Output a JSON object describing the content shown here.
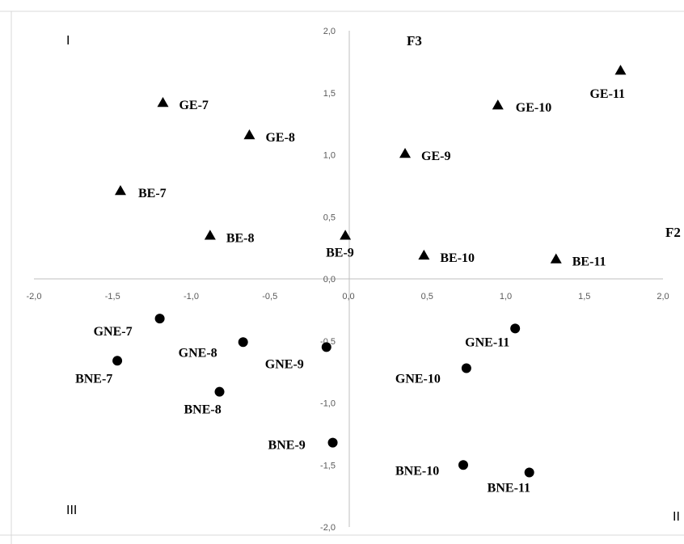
{
  "chart_data": {
    "type": "scatter",
    "title": "",
    "xlabel": "F2",
    "ylabel": "F3",
    "xlim": [
      -2.0,
      2.0
    ],
    "ylim": [
      -2.0,
      2.0
    ],
    "xticks": [
      "-2,0",
      "-1,5",
      "-1,0",
      "-0,5",
      "0,0",
      "0,5",
      "1,0",
      "1,5",
      "2,0"
    ],
    "yticks": [
      "-2,0",
      "-1,5",
      "-1,0",
      "-0,5",
      "0,0",
      "0,5",
      "1,0",
      "1,5",
      "2,0"
    ],
    "grid": false,
    "quadrants": [
      "I",
      "II",
      "III"
    ],
    "series": [
      {
        "marker": "triangle",
        "points": [
          {
            "label": "GE-7",
            "x": -1.18,
            "y": 1.42
          },
          {
            "label": "GE-8",
            "x": -0.63,
            "y": 1.16
          },
          {
            "label": "GE-9",
            "x": 0.36,
            "y": 1.01
          },
          {
            "label": "GE-10",
            "x": 0.95,
            "y": 1.4
          },
          {
            "label": "GE-11",
            "x": 1.73,
            "y": 1.68
          },
          {
            "label": "BE-7",
            "x": -1.45,
            "y": 0.71
          },
          {
            "label": "BE-8",
            "x": -0.88,
            "y": 0.35
          },
          {
            "label": "BE-9",
            "x": -0.02,
            "y": 0.35
          },
          {
            "label": "BE-10",
            "x": 0.48,
            "y": 0.19
          },
          {
            "label": "BE-11",
            "x": 1.32,
            "y": 0.16
          }
        ]
      },
      {
        "marker": "circle",
        "points": [
          {
            "label": "GNE-7",
            "x": -1.2,
            "y": -0.32
          },
          {
            "label": "GNE-8",
            "x": -0.67,
            "y": -0.51
          },
          {
            "label": "GNE-9",
            "x": -0.14,
            "y": -0.55
          },
          {
            "label": "GNE-10",
            "x": 0.75,
            "y": -0.72
          },
          {
            "label": "GNE-11",
            "x": 1.06,
            "y": -0.4
          },
          {
            "label": "BNE-7",
            "x": -1.47,
            "y": -0.66
          },
          {
            "label": "BNE-8",
            "x": -0.82,
            "y": -0.91
          },
          {
            "label": "BNE-9",
            "x": -0.1,
            "y": -1.32
          },
          {
            "label": "BNE-10",
            "x": 0.73,
            "y": -1.5
          },
          {
            "label": "BNE-11",
            "x": 1.15,
            "y": -1.56
          }
        ]
      }
    ]
  }
}
